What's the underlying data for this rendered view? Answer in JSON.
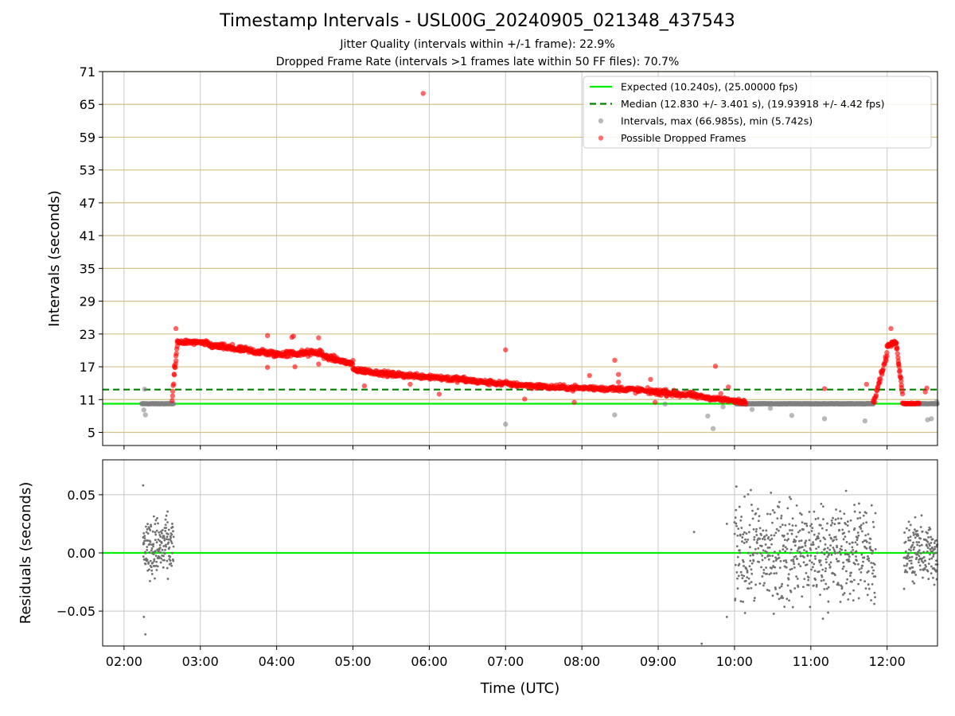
{
  "figure": {
    "title": "Timestamp Intervals - USL00G_20240905_021348_437543",
    "subtitle_1": "Jitter Quality (intervals within +/-1 frame): 22.9%",
    "subtitle_2": "Dropped Frame Rate (intervals >1 frames late within 50 FF files): 70.7%"
  },
  "colors": {
    "expected": "#00ee00",
    "median": "#008000",
    "intervals": "#808080",
    "dropped": "#ff0000",
    "hgrid_top": "#d2c28a",
    "vgrid": "#c8c8c8"
  },
  "chart_data": [
    {
      "type": "scatter",
      "panel": "top",
      "xlabel": "",
      "ylabel": "Intervals (seconds)",
      "x_unit": "hours UTC",
      "xlim": [
        1.72,
        12.66
      ],
      "ylim": [
        2.6,
        71
      ],
      "x_ticks": [
        2,
        3,
        4,
        5,
        6,
        7,
        8,
        9,
        10,
        11,
        12
      ],
      "y_ticks": [
        5,
        11,
        17,
        23,
        29,
        35,
        41,
        47,
        53,
        59,
        65,
        71
      ],
      "y_tick_labels": [
        "5",
        "11",
        "17",
        "23",
        "29",
        "35",
        "41",
        "47",
        "53",
        "59",
        "65",
        "71"
      ],
      "grid": true,
      "legend_position": "top-right",
      "legend": [
        {
          "key": "expected",
          "label": "Expected (10.240s), (25.00000 fps)",
          "style": "solid-line"
        },
        {
          "key": "median",
          "label": "Median (12.830 +/- 3.401 s), (19.93918 +/- 4.42 fps)",
          "style": "dashed-line"
        },
        {
          "key": "intervals",
          "label": "Intervals, max (66.985s), min (5.742s)",
          "style": "dot"
        },
        {
          "key": "dropped",
          "label": "Possible Dropped Frames",
          "style": "dot"
        }
      ],
      "hlines": [
        {
          "key": "expected",
          "y": 10.24
        },
        {
          "key": "median",
          "y": 12.83
        }
      ],
      "series": [
        {
          "name": "Intervals, max (66.985s), min (5.742s)",
          "segments": [
            {
              "x0": 2.23,
              "x1": 2.65,
              "y": 10.24,
              "n": 70,
              "jitter": 0.03
            },
            {
              "x0": 10.02,
              "x1": 11.82,
              "y": 10.24,
              "n": 400,
              "jitter": 0.04
            },
            {
              "x0": 12.22,
              "x1": 12.66,
              "y": 10.24,
              "n": 70,
              "jitter": 0.03
            }
          ],
          "points": [
            [
              2.27,
              12.9
            ],
            [
              2.28,
              8.2
            ],
            [
              2.26,
              9.1
            ],
            [
              7.0,
              6.5
            ],
            [
              8.43,
              8.2
            ],
            [
              9.09,
              10.2
            ],
            [
              9.65,
              8.0
            ],
            [
              9.72,
              5.7
            ],
            [
              9.85,
              9.7
            ],
            [
              10.23,
              9.2
            ],
            [
              10.47,
              9.4
            ],
            [
              10.75,
              8.1
            ],
            [
              11.18,
              7.5
            ],
            [
              11.71,
              7.1
            ],
            [
              12.53,
              7.3
            ],
            [
              12.58,
              7.5
            ],
            [
              12.65,
              10.6
            ]
          ]
        },
        {
          "name": "Possible Dropped Frames",
          "segments": [
            {
              "x0": 2.63,
              "x1": 2.7,
              "y0": 11,
              "y1": 21.5,
              "n": 15,
              "jitter": 0.6
            },
            {
              "x0": 2.7,
              "x1": 3.1,
              "y0": 21.6,
              "y1": 21.3,
              "n": 60,
              "jitter": 0.35
            },
            {
              "x0": 3.1,
              "x1": 3.5,
              "y0": 21.0,
              "y1": 20.2,
              "n": 60,
              "jitter": 0.45
            },
            {
              "x0": 3.5,
              "x1": 4.0,
              "y0": 20.2,
              "y1": 19.3,
              "n": 80,
              "jitter": 0.5
            },
            {
              "x0": 4.0,
              "x1": 4.6,
              "y0": 19.3,
              "y1": 19.6,
              "n": 90,
              "jitter": 0.5
            },
            {
              "x0": 4.6,
              "x1": 5.0,
              "y0": 19.0,
              "y1": 17.5,
              "n": 70,
              "jitter": 0.45
            },
            {
              "x0": 5.0,
              "x1": 5.5,
              "y0": 16.5,
              "y1": 15.6,
              "n": 80,
              "jitter": 0.4
            },
            {
              "x0": 5.5,
              "x1": 6.0,
              "y0": 15.6,
              "y1": 15.2,
              "n": 80,
              "jitter": 0.4
            },
            {
              "x0": 6.0,
              "x1": 6.6,
              "y0": 15.2,
              "y1": 14.4,
              "n": 90,
              "jitter": 0.45
            },
            {
              "x0": 6.6,
              "x1": 7.5,
              "y0": 14.3,
              "y1": 13.4,
              "n": 120,
              "jitter": 0.4
            },
            {
              "x0": 7.5,
              "x1": 8.6,
              "y0": 13.3,
              "y1": 12.9,
              "n": 140,
              "jitter": 0.4
            },
            {
              "x0": 8.6,
              "x1": 9.5,
              "y0": 12.9,
              "y1": 11.7,
              "n": 120,
              "jitter": 0.45
            },
            {
              "x0": 9.5,
              "x1": 10.15,
              "y0": 11.6,
              "y1": 10.5,
              "n": 90,
              "jitter": 0.35
            },
            {
              "x0": 11.82,
              "x1": 12.0,
              "y0": 10.5,
              "y1": 19.5,
              "n": 30,
              "jitter": 0.6
            },
            {
              "x0": 12.0,
              "x1": 12.12,
              "y0": 20.8,
              "y1": 21.5,
              "n": 25,
              "jitter": 0.3
            },
            {
              "x0": 12.12,
              "x1": 12.2,
              "y0": 21.2,
              "y1": 12.5,
              "n": 20,
              "jitter": 0.6
            },
            {
              "x0": 12.2,
              "x1": 12.42,
              "y0": 10.3,
              "y1": 10.3,
              "n": 25,
              "jitter": 0.1
            }
          ],
          "points": [
            [
              2.68,
              24.0
            ],
            [
              2.68,
              19.0
            ],
            [
              2.66,
              17.2
            ],
            [
              3.42,
              21.1
            ],
            [
              3.88,
              22.7
            ],
            [
              3.88,
              16.9
            ],
            [
              4.22,
              22.6
            ],
            [
              4.2,
              22.4
            ],
            [
              4.24,
              17.0
            ],
            [
              4.55,
              22.3
            ],
            [
              4.55,
              17.5
            ],
            [
              5.92,
              67.0
            ],
            [
              5.15,
              13.5
            ],
            [
              5.75,
              13.8
            ],
            [
              6.13,
              12.0
            ],
            [
              7.0,
              20.1
            ],
            [
              7.25,
              11.1
            ],
            [
              7.9,
              10.5
            ],
            [
              8.1,
              15.4
            ],
            [
              8.43,
              18.2
            ],
            [
              8.48,
              15.6
            ],
            [
              8.48,
              14.2
            ],
            [
              8.9,
              14.7
            ],
            [
              8.96,
              10.5
            ],
            [
              9.75,
              17.1
            ],
            [
              9.82,
              12.1
            ],
            [
              9.92,
              13.3
            ],
            [
              11.18,
              13.0
            ],
            [
              11.73,
              13.8
            ],
            [
              12.05,
              24.0
            ],
            [
              12.52,
              13.1
            ],
            [
              12.5,
              12.4
            ]
          ]
        }
      ]
    },
    {
      "type": "scatter",
      "panel": "bottom",
      "xlabel": "Time (UTC)",
      "ylabel": "Residuals (seconds)",
      "x_unit": "hours UTC",
      "xlim": [
        1.72,
        12.66
      ],
      "ylim": [
        -0.08,
        0.08
      ],
      "x_ticks": [
        2,
        3,
        4,
        5,
        6,
        7,
        8,
        9,
        10,
        11,
        12
      ],
      "x_tick_labels": [
        "02:00",
        "03:00",
        "04:00",
        "05:00",
        "06:00",
        "07:00",
        "08:00",
        "09:00",
        "10:00",
        "11:00",
        "12:00"
      ],
      "y_ticks": [
        -0.05,
        0.0,
        0.05
      ],
      "y_tick_labels": [
        "−0.05",
        "0.00",
        "0.05"
      ],
      "grid": true,
      "hlines": [
        {
          "key": "expected",
          "y": 0.0
        }
      ],
      "series": [
        {
          "name": "",
          "segments": [
            {
              "x0": 2.25,
              "x1": 2.65,
              "y": 0.005,
              "n": 170,
              "jitter": 0.022
            },
            {
              "x0": 10.0,
              "x1": 11.85,
              "y": 0.0,
              "n": 600,
              "jitter": 0.038
            },
            {
              "x0": 12.22,
              "x1": 12.66,
              "y": 0.0,
              "n": 170,
              "jitter": 0.022
            }
          ],
          "points": [
            [
              2.25,
              0.058
            ],
            [
              2.28,
              -0.07
            ],
            [
              2.26,
              -0.055
            ],
            [
              9.47,
              0.018
            ],
            [
              9.57,
              -0.078
            ],
            [
              9.9,
              0.025
            ],
            [
              9.9,
              -0.055
            ]
          ]
        }
      ]
    }
  ]
}
